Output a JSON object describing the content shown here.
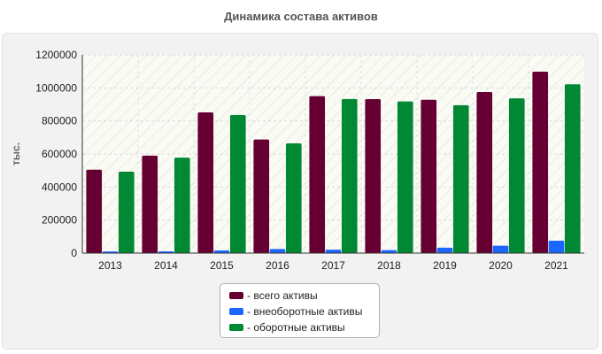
{
  "chart_data": {
    "type": "bar",
    "title": "Динамика состава активов",
    "ylabel": "тыс.",
    "xlabel": "",
    "ylim": [
      0,
      1200000
    ],
    "yticks": [
      0,
      200000,
      400000,
      600000,
      800000,
      1000000,
      1200000
    ],
    "categories": [
      "2013",
      "2014",
      "2015",
      "2016",
      "2017",
      "2018",
      "2019",
      "2020",
      "2021"
    ],
    "series": [
      {
        "name": "- всего активы",
        "color": "#660033",
        "values": [
          505000,
          590000,
          852000,
          688000,
          950000,
          932000,
          928000,
          975000,
          1098000
        ]
      },
      {
        "name": "- внеоборотные активы",
        "color": "#1a66ff",
        "values": [
          10000,
          11000,
          16000,
          25000,
          21000,
          18000,
          33000,
          45000,
          75000
        ]
      },
      {
        "name": "- оборотные активы",
        "color": "#008833",
        "values": [
          493000,
          578000,
          836000,
          664000,
          933000,
          918000,
          895000,
          937000,
          1022000
        ]
      }
    ],
    "grid": true,
    "legend_position": "bottom"
  }
}
